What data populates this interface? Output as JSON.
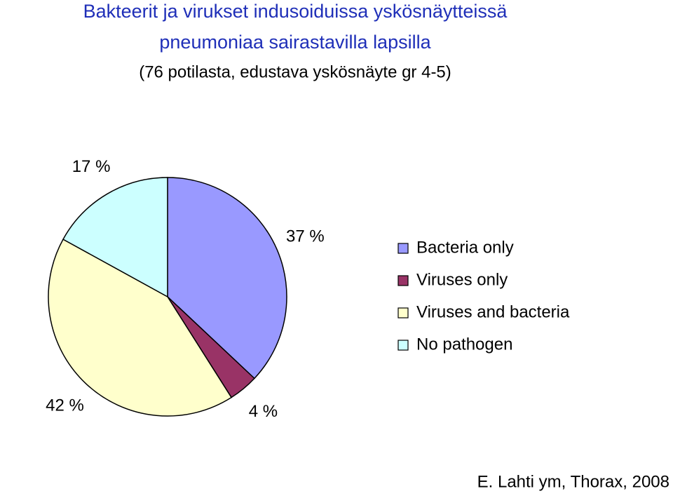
{
  "chart_data": {
    "type": "pie",
    "title": [
      "Bakteerit ja virukset indusoiduissa yskösnäytteissä",
      "pneumoniaa sairastavilla lapsilla"
    ],
    "subtitle": "(76 potilasta, edustava yskösnäyte gr 4-5)",
    "categories": [
      "Bacteria only",
      "Viruses only",
      "Viruses and bacteria",
      "No pathogen"
    ],
    "values": [
      37,
      4,
      42,
      17
    ],
    "value_labels": [
      "37 %",
      "4 %",
      "42 %",
      "17 %"
    ],
    "colors": [
      "#9999ff",
      "#993366",
      "#ffffcc",
      "#ccffff"
    ],
    "legend": "right",
    "source": "E. Lahti ym, Thorax, 2008"
  }
}
